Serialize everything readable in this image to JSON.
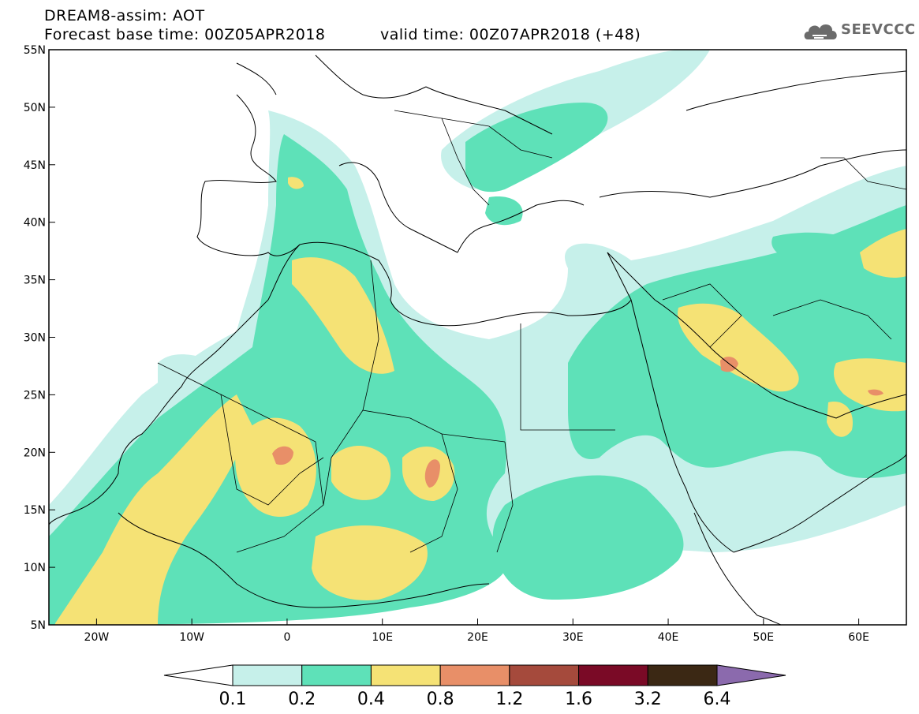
{
  "header": {
    "title_line1": "DREAM8-assim: AOT",
    "title_line2": "Forecast base time: 00Z05APR2018",
    "valid_time": "valid time: 00Z07APR2018 (+48)",
    "logo_text": "SEEVCCC"
  },
  "map": {
    "lon_range": [
      -25,
      65
    ],
    "lat_range": [
      5,
      55
    ],
    "x_ticks": [
      "20W",
      "10W",
      "0",
      "10E",
      "20E",
      "30E",
      "40E",
      "50E",
      "60E"
    ],
    "x_tick_values": [
      -20,
      -10,
      0,
      10,
      20,
      30,
      40,
      50,
      60
    ],
    "y_ticks": [
      "55N",
      "50N",
      "45N",
      "40N",
      "35N",
      "30N",
      "25N",
      "20N",
      "15N",
      "10N",
      "5N"
    ],
    "y_tick_values": [
      55,
      50,
      45,
      40,
      35,
      30,
      25,
      20,
      15,
      10,
      5
    ]
  },
  "colorbar": {
    "labels": [
      "0.1",
      "0.2",
      "0.4",
      "0.8",
      "1.2",
      "1.6",
      "3.2",
      "6.4"
    ],
    "colors": [
      "#c6f0ea",
      "#5ee1b8",
      "#f5e275",
      "#e88f68",
      "#a54a3c",
      "#7a0a26",
      "#3b2814",
      "#8b6aad"
    ]
  }
}
